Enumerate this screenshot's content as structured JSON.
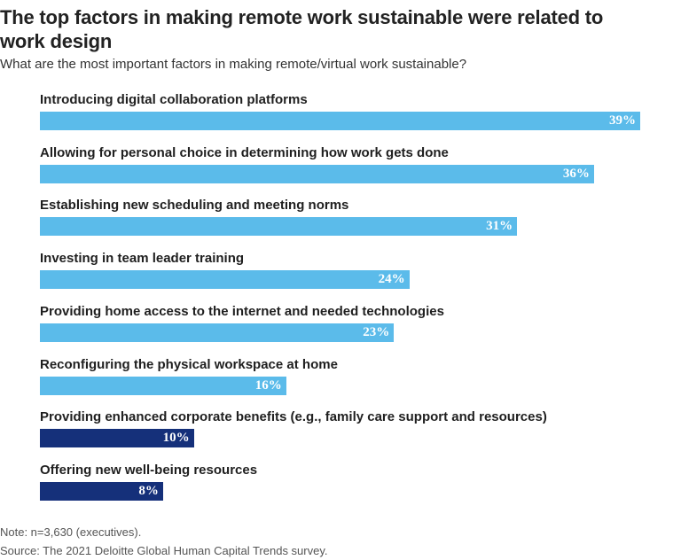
{
  "chart_data": {
    "type": "bar",
    "orientation": "horizontal",
    "title": "The top factors in making remote work sustainable were related to work design",
    "subtitle": "What are the most important factors in making remote/virtual work sustainable?",
    "categories": [
      "Introducing digital collaboration platforms",
      "Allowing for personal choice in determining how work gets done",
      "Establishing new scheduling and meeting norms",
      "Investing in team leader training",
      "Providing home access to the internet and needed technologies",
      "Reconfiguring the physical workspace at home",
      "Providing enhanced corporate benefits (e.g., family care support and resources)",
      "Offering new well-being resources"
    ],
    "values": [
      39,
      36,
      31,
      24,
      23,
      16,
      10,
      8
    ],
    "value_labels": [
      "39%",
      "36%",
      "31%",
      "24%",
      "23%",
      "16%",
      "10%",
      "8%"
    ],
    "unit": "%",
    "xlim": [
      0,
      39
    ],
    "grid": false,
    "legend": "none",
    "colors": {
      "primary": "#5bbbea",
      "secondary": "#15307a",
      "label_text": "#ffffff"
    },
    "bar_colors": [
      "primary",
      "primary",
      "primary",
      "primary",
      "primary",
      "primary",
      "secondary",
      "secondary"
    ]
  },
  "notes": {
    "note": "Note: n=3,630 (executives).",
    "source": "Source: The 2021 Deloitte Global Human Capital Trends survey."
  }
}
